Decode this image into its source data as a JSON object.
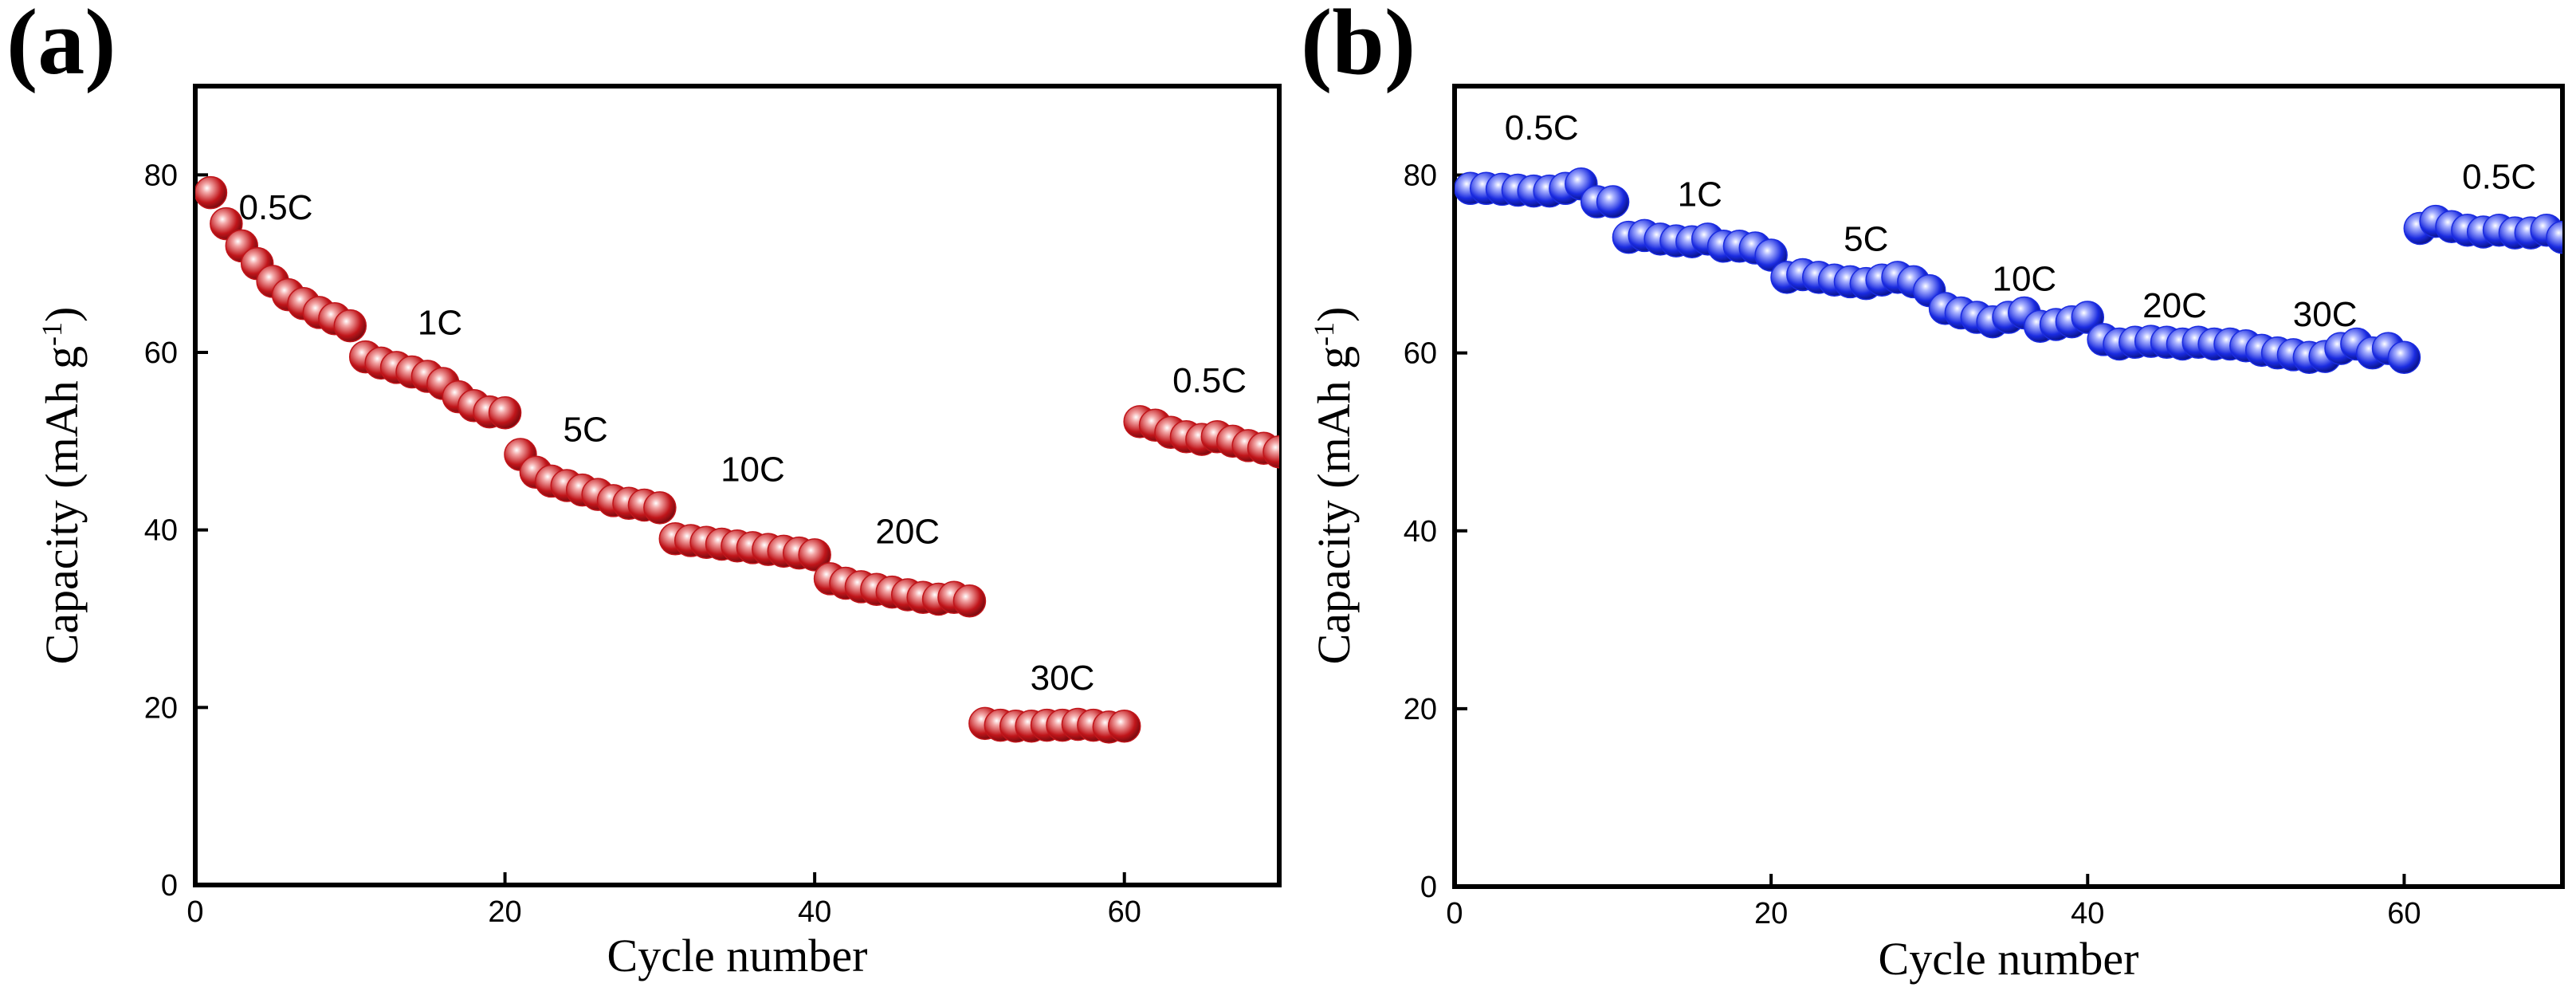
{
  "chart_data": [
    {
      "type": "scatter",
      "panel_label": "(a)",
      "xlabel": "Cycle number",
      "ylabel_main": "Capacity (mAh g",
      "ylabel_sup": "-1",
      "ylabel_end": ")",
      "xlim": [
        0,
        70
      ],
      "ylim": [
        0,
        90
      ],
      "xticks": [
        0,
        20,
        40,
        60
      ],
      "yticks": [
        0,
        20,
        40,
        60,
        80
      ],
      "marker_color": "#c0151a",
      "marker_highlight": "#f3a8a8",
      "series": [
        {
          "name": "capacity",
          "x": [
            1,
            2,
            3,
            4,
            5,
            6,
            7,
            8,
            9,
            10,
            11,
            12,
            13,
            14,
            15,
            16,
            17,
            18,
            19,
            20,
            21,
            22,
            23,
            24,
            25,
            26,
            27,
            28,
            29,
            30,
            31,
            32,
            33,
            34,
            35,
            36,
            37,
            38,
            39,
            40,
            41,
            42,
            43,
            44,
            45,
            46,
            47,
            48,
            49,
            50,
            51,
            52,
            53,
            54,
            55,
            56,
            57,
            58,
            59,
            60,
            61,
            62,
            63,
            64,
            65,
            66,
            67,
            68,
            69,
            70
          ],
          "y": [
            78,
            74.5,
            72,
            70,
            68,
            66.5,
            65.5,
            64.5,
            63.8,
            63,
            59.5,
            58.8,
            58.3,
            57.8,
            57.3,
            56.5,
            55,
            54,
            53.3,
            53.2,
            48.5,
            46.5,
            45.5,
            45,
            44.5,
            44,
            43.3,
            43,
            42.8,
            42.5,
            39,
            38.8,
            38.6,
            38.4,
            38.2,
            38,
            37.8,
            37.6,
            37.4,
            37.2,
            34.5,
            34,
            33.6,
            33.3,
            33,
            32.7,
            32.4,
            32.2,
            32.4,
            32,
            18.2,
            18,
            17.9,
            17.9,
            18,
            18,
            18.1,
            18,
            17.8,
            17.9,
            52.2,
            51.8,
            51,
            50.5,
            50.2,
            50.5,
            50,
            49.5,
            49.2,
            48.8
          ]
        }
      ],
      "annotations": [
        {
          "text": "0.5C",
          "x": 5.2,
          "y": 75
        },
        {
          "text": "1C",
          "x": 15.8,
          "y": 62
        },
        {
          "text": "5C",
          "x": 25.2,
          "y": 50
        },
        {
          "text": "10C",
          "x": 36,
          "y": 45.5
        },
        {
          "text": "20C",
          "x": 46,
          "y": 38.5
        },
        {
          "text": "30C",
          "x": 56,
          "y": 22
        },
        {
          "text": "0.5C",
          "x": 65.5,
          "y": 55.5
        }
      ]
    },
    {
      "type": "scatter",
      "panel_label": "(b)",
      "xlabel": "Cycle number",
      "ylabel_main": "Capacity (mAh g",
      "ylabel_sup": "-1",
      "ylabel_end": ")",
      "xlim": [
        0,
        70
      ],
      "ylim": [
        0,
        90
      ],
      "xticks": [
        0,
        20,
        40,
        60
      ],
      "yticks": [
        0,
        20,
        40,
        60,
        80
      ],
      "marker_color": "#1a2be0",
      "marker_highlight": "#a9b2ff",
      "series": [
        {
          "name": "capacity",
          "x": [
            1,
            2,
            3,
            4,
            5,
            6,
            7,
            8,
            9,
            10,
            11,
            12,
            13,
            14,
            15,
            16,
            17,
            18,
            19,
            20,
            21,
            22,
            23,
            24,
            25,
            26,
            27,
            28,
            29,
            30,
            31,
            32,
            33,
            34,
            35,
            36,
            37,
            38,
            39,
            40,
            41,
            42,
            43,
            44,
            45,
            46,
            47,
            48,
            49,
            50,
            51,
            52,
            53,
            54,
            55,
            56,
            57,
            58,
            59,
            60,
            61,
            62,
            63,
            64,
            65,
            66,
            67,
            68,
            69,
            70
          ],
          "y": [
            78.5,
            78.5,
            78.4,
            78.3,
            78.2,
            78.2,
            78.5,
            79,
            77,
            77,
            73,
            73.2,
            72.8,
            72.6,
            72.5,
            72.8,
            72,
            72,
            71.8,
            71,
            68.5,
            68.8,
            68.5,
            68.2,
            68,
            67.8,
            68.2,
            68.5,
            68,
            67,
            65,
            64.5,
            64,
            63.5,
            64,
            64.5,
            63,
            63.2,
            63.5,
            64,
            61.5,
            61,
            61.2,
            61.3,
            61.2,
            61,
            61.2,
            61,
            61,
            60.8,
            60.3,
            60,
            59.8,
            59.5,
            59.6,
            60.5,
            61,
            60,
            60.5,
            59.5,
            74,
            74.8,
            74.2,
            73.8,
            73.6,
            73.8,
            73.5,
            73.5,
            73.8,
            73
          ]
        }
      ],
      "annotations": [
        {
          "text": "0.5C",
          "x": 5.5,
          "y": 84
        },
        {
          "text": "1C",
          "x": 15.5,
          "y": 76.5
        },
        {
          "text": "5C",
          "x": 26,
          "y": 71.5
        },
        {
          "text": "10C",
          "x": 36,
          "y": 67
        },
        {
          "text": "20C",
          "x": 45.5,
          "y": 64
        },
        {
          "text": "30C",
          "x": 55,
          "y": 63
        },
        {
          "text": "0.5C",
          "x": 66,
          "y": 78.5
        }
      ]
    }
  ]
}
